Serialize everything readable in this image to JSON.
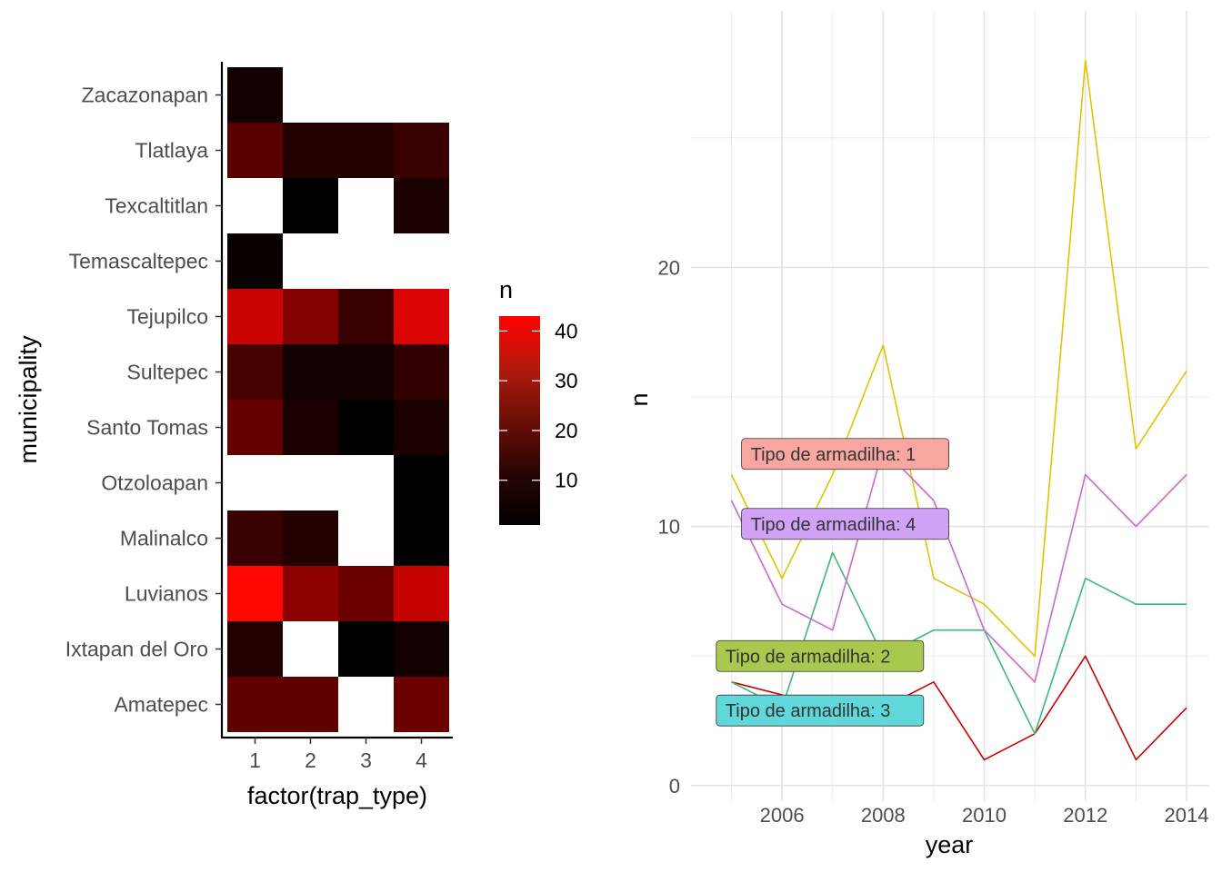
{
  "chart_data": [
    {
      "type": "heatmap",
      "xlabel": "factor(trap_type)",
      "ylabel": "municipality",
      "x_categories": [
        "1",
        "2",
        "3",
        "4"
      ],
      "y_categories": [
        "Zacazonapan",
        "Tlatlaya",
        "Texcaltitlan",
        "Temascaltepec",
        "Tejupilco",
        "Sultepec",
        "Santo Tomas",
        "Otzoloapan",
        "Malinalco",
        "Luvianos",
        "Ixtapan del Oro",
        "Amatepec"
      ],
      "values": [
        [
          3,
          null,
          null,
          null
        ],
        [
          13,
          5,
          5,
          8
        ],
        [
          null,
          1,
          null,
          4
        ],
        [
          2,
          null,
          null,
          null
        ],
        [
          33,
          20,
          8,
          36
        ],
        [
          10,
          3,
          3,
          7
        ],
        [
          15,
          4,
          1,
          4
        ],
        [
          null,
          null,
          null,
          1
        ],
        [
          8,
          5,
          null,
          1
        ],
        [
          43,
          22,
          16,
          32
        ],
        [
          5,
          null,
          1,
          3
        ],
        [
          14,
          14,
          null,
          16
        ]
      ],
      "color_scale": {
        "title": "n",
        "low": "#000000",
        "high": "#ff0000",
        "limits": [
          1,
          43
        ],
        "breaks": [
          10,
          20,
          30,
          40
        ]
      },
      "na_color": "#ffffff"
    },
    {
      "type": "line",
      "xlabel": "year",
      "ylabel": "n",
      "x": [
        2005,
        2006,
        2007,
        2008,
        2009,
        2010,
        2011,
        2012,
        2013,
        2014
      ],
      "x_ticks": [
        2006,
        2008,
        2010,
        2012,
        2014
      ],
      "y_ticks": [
        0,
        10,
        20
      ],
      "xlim": [
        2004.2,
        2014.45
      ],
      "ylim": [
        -0.6,
        29.9
      ],
      "grid": true,
      "series": [
        {
          "name": "1",
          "label": "Tipo de armadilha:  1",
          "color": "#cd0000",
          "fill": "#f8a7a0",
          "values": [
            4,
            3.5,
            3,
            3,
            4,
            1,
            2,
            5,
            1,
            3
          ]
        },
        {
          "name": "2",
          "label": "Tipo de armadilha:  2",
          "color": "#e5c100",
          "fill": "#a8c94d",
          "values": [
            12,
            8,
            12,
            17,
            8,
            7,
            5,
            28,
            13,
            16
          ]
        },
        {
          "name": "3",
          "label": "Tipo de armadilha:  3",
          "color": "#3cb878",
          "fill": "#60d7d8",
          "values": [
            4,
            3,
            9,
            5,
            6,
            6,
            2,
            8,
            7,
            7
          ]
        },
        {
          "name": "4",
          "label": "Tipo de armadilha:  4",
          "color": "#cc66d5",
          "fill": "#d0a3f7",
          "values": [
            11,
            7,
            6,
            13,
            11,
            6,
            4,
            12,
            10,
            12
          ]
        }
      ]
    }
  ]
}
